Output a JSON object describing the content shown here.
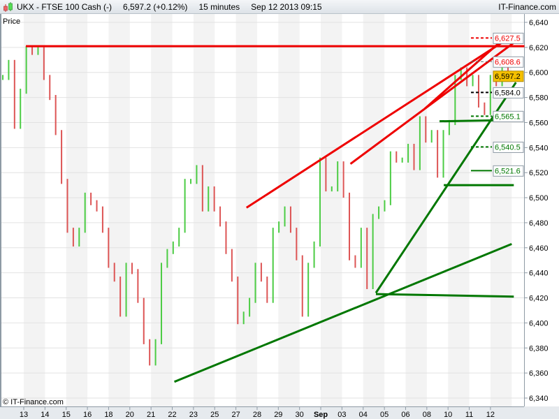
{
  "header": {
    "symbol": "UKX - FTSE 100 Cash (-)",
    "price": "6,597.2 (+0.12%)",
    "interval": "15 minutes",
    "datetime": "Sep 12 2013 09:15"
  },
  "copyright": "© IT-Finance.com",
  "brand": "IT-Finance.com",
  "colors": {
    "up": "#4ccc44",
    "down": "#dd5555",
    "red_line": "#ee0000",
    "green_line": "#007700",
    "last_price_bg": "#f5c000"
  },
  "chart_data": {
    "type": "candlestick",
    "ylabel": "Price",
    "ylim": [
      6340,
      6640
    ],
    "grid": true,
    "yticks": [
      "6,640",
      "6,620",
      "6,600",
      "6,580",
      "6,560",
      "6,540",
      "6,520",
      "6,500",
      "6,480",
      "6,460",
      "6,440",
      "6,420",
      "6,400",
      "6,380",
      "6,360",
      "6,340"
    ],
    "xticks": [
      "13",
      "14",
      "15",
      "16",
      "18",
      "20",
      "21",
      "22",
      "23",
      "25",
      "27",
      "28",
      "29",
      "30",
      "Sep",
      "03",
      "04",
      "05",
      "06",
      "08",
      "10",
      "11",
      "12"
    ],
    "closes": [
      6596,
      6608,
      6557,
      6585,
      6619,
      6616,
      6619,
      6596,
      6580,
      6552,
      6513,
      6474,
      6463,
      6474,
      6502,
      6496,
      6491,
      6474,
      6446,
      6435,
      6407,
      6446,
      6441,
      6418,
      6385,
      6368,
      6385,
      6446,
      6457,
      6463,
      6474,
      6513,
      6513,
      6524,
      6491,
      6507,
      6491,
      6479,
      6457,
      6435,
      6401,
      6407,
      6418,
      6446,
      6435,
      6418,
      6474,
      6479,
      6491,
      6474,
      6452,
      6407,
      6446,
      6463,
      6530,
      6507,
      6507,
      6527,
      6502,
      6452,
      6446,
      6474,
      6429,
      6485,
      6491,
      6496,
      6535,
      6530,
      6530,
      6541,
      6524,
      6563,
      6546,
      6552,
      6518,
      6552,
      6560,
      6596,
      6602,
      6591,
      6596,
      6574,
      6568,
      6596,
      6591,
      6602,
      6597.2
    ],
    "last_price": "6,597.2",
    "levels": [
      {
        "value": 6627.5,
        "label": "6,627.5",
        "color": "#ee0000",
        "style": "dashed"
      },
      {
        "value": 6608.6,
        "label": "6,608.6",
        "color": "#ee0000",
        "style": "dashed-grey"
      },
      {
        "value": 6584.0,
        "label": "6,584.0",
        "color": "#000000",
        "style": "dashed"
      },
      {
        "value": 6565.1,
        "label": "6,565.1",
        "color": "#007700",
        "style": "dashed"
      },
      {
        "value": 6540.5,
        "label": "6,540.5",
        "color": "#007700",
        "style": "dashed"
      },
      {
        "value": 6521.6,
        "label": "6,521.6",
        "color": "#007700",
        "style": "solid"
      }
    ],
    "trendlines": [
      {
        "color": "red",
        "from": [
          0.1,
          6621
        ],
        "to": [
          23.6,
          6621
        ]
      },
      {
        "color": "red",
        "from": [
          10.5,
          6492
        ],
        "to": [
          23.1,
          6630
        ]
      },
      {
        "color": "red",
        "from": [
          15.4,
          6527
        ],
        "to": [
          23.2,
          6625
        ]
      },
      {
        "color": "red",
        "from": [
          18.9,
          6571
        ],
        "to": [
          22.9,
          6631
        ]
      },
      {
        "color": "green",
        "from": [
          7.1,
          6353
        ],
        "to": [
          23.0,
          6463
        ]
      },
      {
        "color": "green",
        "from": [
          16.6,
          6424
        ],
        "to": [
          23.2,
          6592
        ]
      },
      {
        "color": "green",
        "from": [
          16.6,
          6423
        ],
        "to": [
          23.1,
          6421
        ]
      },
      {
        "color": "green",
        "from": [
          19.6,
          6561
        ],
        "to": [
          23.1,
          6562
        ]
      },
      {
        "color": "green",
        "from": [
          19.8,
          6510
        ],
        "to": [
          23.1,
          6510
        ]
      }
    ]
  }
}
